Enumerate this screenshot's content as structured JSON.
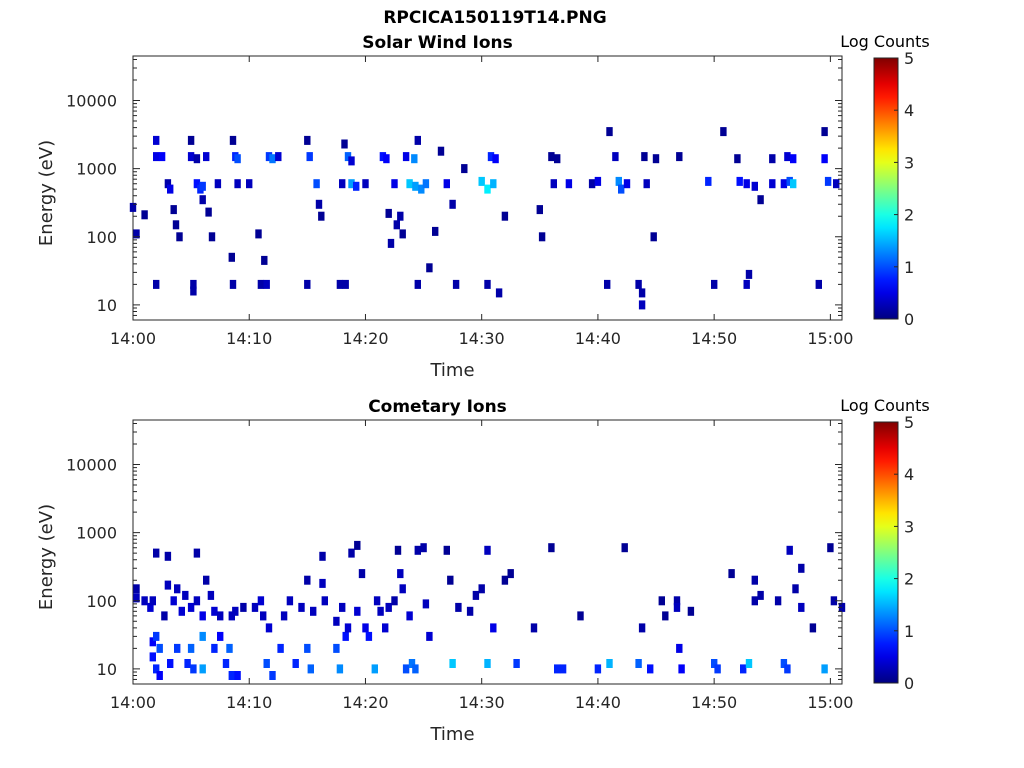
{
  "figure": {
    "title": "RPCICA150119T14.PNG"
  },
  "chart_data": [
    {
      "type": "heatmap",
      "title": "Solar Wind Ions",
      "xlabel": "Time",
      "ylabel": "Energy (eV)",
      "y_scale": "log",
      "ylim": [
        6,
        45000
      ],
      "xlim": [
        "14:00",
        "15:01"
      ],
      "x_ticks": [
        "14:00",
        "14:10",
        "14:20",
        "14:30",
        "14:40",
        "14:50",
        "15:00"
      ],
      "y_ticks": [
        "10",
        "100",
        "1000",
        "10000"
      ],
      "colorbar": {
        "label": "Log Counts",
        "ticks": [
          "0",
          "1",
          "2",
          "3",
          "4",
          "5"
        ],
        "range": [
          0,
          5
        ],
        "colormap": "jet"
      },
      "points": [
        [
          0.0,
          270,
          0.2
        ],
        [
          0.3,
          110,
          0.2
        ],
        [
          1.0,
          210,
          0.1
        ],
        [
          2.0,
          2600,
          0.4
        ],
        [
          2.0,
          1500,
          0.5
        ],
        [
          2.0,
          20,
          0.2
        ],
        [
          2.5,
          1500,
          0.6
        ],
        [
          3.0,
          600,
          0.2
        ],
        [
          3.2,
          500,
          0.5
        ],
        [
          3.5,
          250,
          0.1
        ],
        [
          3.7,
          150,
          0.1
        ],
        [
          4.0,
          100,
          0.1
        ],
        [
          5.0,
          2600,
          0.1
        ],
        [
          5.0,
          1500,
          0.4
        ],
        [
          5.2,
          20,
          0.2
        ],
        [
          5.2,
          16,
          0.2
        ],
        [
          5.5,
          1400,
          0.2
        ],
        [
          5.5,
          600,
          0.7
        ],
        [
          5.8,
          500,
          0.8
        ],
        [
          6.0,
          550,
          0.9
        ],
        [
          6.0,
          350,
          0.2
        ],
        [
          6.3,
          1500,
          0.4
        ],
        [
          6.5,
          230,
          0.1
        ],
        [
          6.8,
          100,
          0.1
        ],
        [
          7.3,
          600,
          0.3
        ],
        [
          8.5,
          50,
          0.1
        ],
        [
          8.6,
          2600,
          0.1
        ],
        [
          8.6,
          20,
          0.2
        ],
        [
          8.8,
          1500,
          0.8
        ],
        [
          9.0,
          1400,
          1.0
        ],
        [
          9.0,
          600,
          0.3
        ],
        [
          10.0,
          600,
          0.3
        ],
        [
          10.8,
          110,
          0.1
        ],
        [
          11.0,
          20,
          0.2
        ],
        [
          11.3,
          45,
          0.1
        ],
        [
          11.5,
          20,
          0.3
        ],
        [
          11.7,
          1500,
          0.9
        ],
        [
          12.0,
          1400,
          1.2
        ],
        [
          12.5,
          1500,
          0.4
        ],
        [
          15.0,
          2600,
          0.1
        ],
        [
          15.0,
          20,
          0.2
        ],
        [
          15.2,
          1500,
          0.9
        ],
        [
          15.8,
          600,
          1.0
        ],
        [
          16.0,
          300,
          0.2
        ],
        [
          16.2,
          200,
          0.1
        ],
        [
          17.8,
          20,
          0.2
        ],
        [
          18.0,
          600,
          0.3
        ],
        [
          18.2,
          2300,
          0.1
        ],
        [
          18.3,
          20,
          0.2
        ],
        [
          18.5,
          1500,
          1.1
        ],
        [
          18.8,
          1300,
          0.4
        ],
        [
          18.8,
          600,
          1.4
        ],
        [
          19.2,
          550,
          0.8
        ],
        [
          20.0,
          600,
          0.3
        ],
        [
          21.5,
          1500,
          0.7
        ],
        [
          21.8,
          1400,
          0.6
        ],
        [
          22.0,
          220,
          0.1
        ],
        [
          22.2,
          80,
          0.2
        ],
        [
          22.5,
          600,
          0.5
        ],
        [
          22.7,
          150,
          0.2
        ],
        [
          23.0,
          200,
          0.2
        ],
        [
          23.2,
          110,
          0.1
        ],
        [
          23.5,
          1500,
          0.5
        ],
        [
          23.8,
          600,
          1.6
        ],
        [
          24.2,
          1400,
          1.3
        ],
        [
          24.3,
          550,
          1.4
        ],
        [
          24.5,
          2600,
          0.2
        ],
        [
          24.5,
          20,
          0.2
        ],
        [
          24.8,
          500,
          1.3
        ],
        [
          25.2,
          600,
          1.2
        ],
        [
          25.5,
          35,
          0.1
        ],
        [
          26.0,
          120,
          0.1
        ],
        [
          26.5,
          1800,
          0.1
        ],
        [
          27.0,
          600,
          0.5
        ],
        [
          27.5,
          300,
          0.2
        ],
        [
          27.8,
          20,
          0.2
        ],
        [
          28.5,
          1000,
          0.1
        ],
        [
          30.0,
          650,
          1.6
        ],
        [
          30.5,
          500,
          1.8
        ],
        [
          30.5,
          20,
          0.2
        ],
        [
          30.8,
          1500,
          0.8
        ],
        [
          31.0,
          600,
          1.5
        ],
        [
          31.2,
          1400,
          0.6
        ],
        [
          31.5,
          15,
          0.2
        ],
        [
          32.0,
          200,
          0.1
        ],
        [
          35.0,
          250,
          0.1
        ],
        [
          35.2,
          100,
          0.1
        ],
        [
          36.0,
          1500,
          0.1
        ],
        [
          36.2,
          600,
          0.3
        ],
        [
          36.5,
          1400,
          0.1
        ],
        [
          37.5,
          600,
          0.5
        ],
        [
          39.5,
          600,
          0.2
        ],
        [
          40.0,
          650,
          0.5
        ],
        [
          40.8,
          20,
          0.2
        ],
        [
          41.0,
          3500,
          0.1
        ],
        [
          41.5,
          1500,
          0.3
        ],
        [
          41.8,
          650,
          1.3
        ],
        [
          42.0,
          500,
          1.0
        ],
        [
          42.5,
          600,
          0.5
        ],
        [
          43.5,
          20,
          0.2
        ],
        [
          43.8,
          15,
          0.2
        ],
        [
          43.8,
          10,
          0.3
        ],
        [
          44.0,
          1500,
          0.1
        ],
        [
          44.2,
          600,
          0.3
        ],
        [
          44.8,
          100,
          0.1
        ],
        [
          45.0,
          1400,
          0.1
        ],
        [
          47.0,
          1500,
          0.1
        ],
        [
          49.5,
          650,
          0.8
        ],
        [
          50.0,
          20,
          0.2
        ],
        [
          50.8,
          3500,
          0.1
        ],
        [
          52.0,
          1400,
          0.1
        ],
        [
          52.2,
          650,
          0.7
        ],
        [
          52.8,
          600,
          0.5
        ],
        [
          52.8,
          20,
          0.3
        ],
        [
          53.0,
          28,
          0.2
        ],
        [
          53.5,
          550,
          0.4
        ],
        [
          54.0,
          350,
          0.1
        ],
        [
          55.0,
          600,
          0.4
        ],
        [
          55.0,
          1400,
          0.2
        ],
        [
          56.0,
          600,
          0.5
        ],
        [
          56.3,
          1500,
          0.4
        ],
        [
          56.5,
          650,
          1.0
        ],
        [
          56.8,
          1400,
          0.6
        ],
        [
          56.8,
          600,
          1.6
        ],
        [
          59.0,
          20,
          0.2
        ],
        [
          59.5,
          3500,
          0.1
        ],
        [
          59.5,
          1400,
          0.6
        ],
        [
          59.8,
          650,
          0.9
        ],
        [
          60.5,
          600,
          0.3
        ]
      ]
    },
    {
      "type": "heatmap",
      "title": "Cometary Ions",
      "xlabel": "Time",
      "ylabel": "Energy (eV)",
      "y_scale": "log",
      "ylim": [
        6,
        45000
      ],
      "xlim": [
        "14:00",
        "15:01"
      ],
      "x_ticks": [
        "14:00",
        "14:10",
        "14:20",
        "14:30",
        "14:40",
        "14:50",
        "15:00"
      ],
      "y_ticks": [
        "10",
        "100",
        "1000",
        "10000"
      ],
      "colorbar": {
        "label": "Log Counts",
        "ticks": [
          "0",
          "1",
          "2",
          "3",
          "4",
          "5"
        ],
        "range": [
          0,
          5
        ],
        "colormap": "jet"
      },
      "points": [
        [
          0.3,
          150,
          0.2
        ],
        [
          0.3,
          110,
          0.3
        ],
        [
          1.0,
          100,
          0.3
        ],
        [
          1.5,
          80,
          0.4
        ],
        [
          1.7,
          100,
          0.3
        ],
        [
          1.7,
          25,
          0.6
        ],
        [
          1.7,
          15,
          0.7
        ],
        [
          2.0,
          500,
          0.2
        ],
        [
          2.0,
          30,
          0.9
        ],
        [
          2.0,
          10,
          0.8
        ],
        [
          2.3,
          20,
          1.0
        ],
        [
          2.3,
          8,
          0.6
        ],
        [
          2.7,
          60,
          0.2
        ],
        [
          3.0,
          450,
          0.2
        ],
        [
          3.0,
          170,
          0.3
        ],
        [
          3.2,
          12,
          0.7
        ],
        [
          3.5,
          100,
          0.4
        ],
        [
          3.8,
          150,
          0.3
        ],
        [
          3.8,
          20,
          0.9
        ],
        [
          4.2,
          70,
          0.4
        ],
        [
          4.5,
          120,
          0.3
        ],
        [
          4.7,
          12,
          0.8
        ],
        [
          5.0,
          80,
          0.4
        ],
        [
          5.0,
          20,
          1.1
        ],
        [
          5.2,
          10,
          0.9
        ],
        [
          5.5,
          500,
          0.2
        ],
        [
          5.5,
          100,
          0.3
        ],
        [
          6.0,
          30,
          1.3
        ],
        [
          6.0,
          10,
          1.4
        ],
        [
          6.0,
          60,
          0.5
        ],
        [
          6.3,
          200,
          0.2
        ],
        [
          6.7,
          120,
          0.3
        ],
        [
          7.0,
          70,
          0.4
        ],
        [
          7.0,
          20,
          0.8
        ],
        [
          7.5,
          60,
          0.3
        ],
        [
          7.5,
          30,
          0.6
        ],
        [
          8.0,
          12,
          0.8
        ],
        [
          8.3,
          20,
          1.1
        ],
        [
          8.5,
          8,
          0.8
        ],
        [
          8.5,
          60,
          0.3
        ],
        [
          8.8,
          70,
          0.3
        ],
        [
          9.0,
          8,
          0.7
        ],
        [
          9.5,
          80,
          0.2
        ],
        [
          10.5,
          80,
          0.3
        ],
        [
          11.0,
          100,
          0.4
        ],
        [
          11.2,
          60,
          0.3
        ],
        [
          11.5,
          12,
          1.0
        ],
        [
          11.7,
          40,
          0.4
        ],
        [
          12.0,
          8,
          0.9
        ],
        [
          12.7,
          20,
          0.8
        ],
        [
          13.0,
          60,
          0.3
        ],
        [
          13.5,
          100,
          0.3
        ],
        [
          14.0,
          12,
          0.8
        ],
        [
          14.5,
          80,
          0.3
        ],
        [
          15.0,
          200,
          0.2
        ],
        [
          15.0,
          20,
          1.0
        ],
        [
          15.3,
          10,
          1.1
        ],
        [
          15.5,
          70,
          0.3
        ],
        [
          16.3,
          450,
          0.2
        ],
        [
          16.3,
          180,
          0.3
        ],
        [
          16.5,
          100,
          0.3
        ],
        [
          17.5,
          50,
          0.3
        ],
        [
          17.5,
          20,
          1.0
        ],
        [
          17.8,
          10,
          1.3
        ],
        [
          18.0,
          80,
          0.3
        ],
        [
          18.3,
          30,
          0.7
        ],
        [
          18.5,
          40,
          0.4
        ],
        [
          18.8,
          500,
          0.2
        ],
        [
          19.3,
          650,
          0.1
        ],
        [
          19.3,
          70,
          0.4
        ],
        [
          19.7,
          250,
          0.2
        ],
        [
          20.0,
          40,
          0.5
        ],
        [
          20.3,
          30,
          0.7
        ],
        [
          20.8,
          10,
          1.4
        ],
        [
          21.0,
          100,
          0.3
        ],
        [
          21.3,
          70,
          0.3
        ],
        [
          21.7,
          40,
          0.4
        ],
        [
          22.0,
          80,
          0.3
        ],
        [
          22.5,
          100,
          0.2
        ],
        [
          22.8,
          550,
          0.1
        ],
        [
          23.0,
          250,
          0.3
        ],
        [
          23.2,
          150,
          0.3
        ],
        [
          23.5,
          10,
          1.0
        ],
        [
          23.8,
          60,
          0.4
        ],
        [
          24.0,
          12,
          1.2
        ],
        [
          24.3,
          10,
          1.1
        ],
        [
          24.5,
          550,
          0.2
        ],
        [
          25.0,
          600,
          0.2
        ],
        [
          25.2,
          90,
          0.3
        ],
        [
          25.5,
          30,
          0.4
        ],
        [
          27.0,
          550,
          0.1
        ],
        [
          27.3,
          200,
          0.1
        ],
        [
          27.5,
          12,
          1.6
        ],
        [
          28.0,
          80,
          0.2
        ],
        [
          29.0,
          70,
          0.2
        ],
        [
          29.5,
          120,
          0.2
        ],
        [
          30.0,
          150,
          0.2
        ],
        [
          30.5,
          550,
          0.3
        ],
        [
          30.5,
          12,
          1.5
        ],
        [
          31.0,
          40,
          0.5
        ],
        [
          32.0,
          200,
          0.1
        ],
        [
          32.5,
          250,
          0.1
        ],
        [
          33.0,
          12,
          0.9
        ],
        [
          34.5,
          40,
          0.2
        ],
        [
          36.0,
          600,
          0.1
        ],
        [
          36.5,
          10,
          0.8
        ],
        [
          37.0,
          10,
          0.8
        ],
        [
          38.5,
          60,
          0.1
        ],
        [
          40.0,
          10,
          0.8
        ],
        [
          41.0,
          12,
          1.5
        ],
        [
          42.3,
          600,
          0.1
        ],
        [
          43.5,
          12,
          1.1
        ],
        [
          43.8,
          40,
          0.2
        ],
        [
          44.5,
          10,
          0.7
        ],
        [
          45.5,
          100,
          0.1
        ],
        [
          45.8,
          60,
          0.1
        ],
        [
          46.8,
          100,
          0.2
        ],
        [
          46.8,
          80,
          0.3
        ],
        [
          47.0,
          20,
          0.5
        ],
        [
          47.2,
          10,
          0.6
        ],
        [
          48.0,
          70,
          0.1
        ],
        [
          50.0,
          12,
          1.0
        ],
        [
          50.3,
          10,
          0.9
        ],
        [
          51.5,
          250,
          0.1
        ],
        [
          52.5,
          10,
          0.8
        ],
        [
          53.0,
          12,
          1.6
        ],
        [
          53.5,
          200,
          0.2
        ],
        [
          53.5,
          100,
          0.2
        ],
        [
          54.0,
          120,
          0.2
        ],
        [
          55.5,
          100,
          0.2
        ],
        [
          56.0,
          12,
          1.0
        ],
        [
          56.3,
          10,
          0.9
        ],
        [
          56.5,
          550,
          0.3
        ],
        [
          57.0,
          150,
          0.2
        ],
        [
          57.5,
          300,
          0.2
        ],
        [
          57.5,
          80,
          0.3
        ],
        [
          58.5,
          40,
          0.1
        ],
        [
          59.5,
          10,
          1.4
        ],
        [
          60.0,
          600,
          0.1
        ],
        [
          60.3,
          100,
          0.2
        ],
        [
          61.0,
          80,
          0.2
        ]
      ]
    }
  ]
}
